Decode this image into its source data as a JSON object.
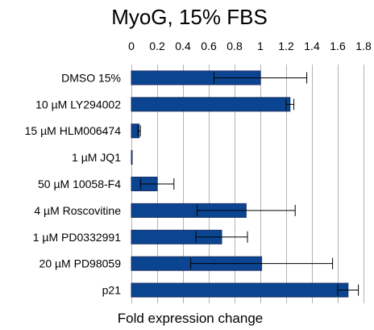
{
  "chart_data": {
    "type": "bar",
    "orientation": "horizontal",
    "title": "MyoG, 15% FBS",
    "xlabel": "Fold expression change",
    "ylabel": "",
    "xlim": [
      0,
      1.8
    ],
    "xticks": [
      0,
      0.2,
      0.4,
      0.6,
      0.8,
      1,
      1.2,
      1.4,
      1.6,
      1.8
    ],
    "xtick_position": "top",
    "grid": true,
    "bar_color": "#0b4591",
    "categories": [
      "DMSO 15%",
      "10 µM LY294002",
      "15 µM HLM006474",
      "1 µM JQ1",
      "50 µM 10058-F4",
      "4 µM Roscovitine",
      "1 µM PD0332991",
      "20 µM PD98059",
      "p21"
    ],
    "values": [
      1.0,
      1.23,
      0.06,
      0.005,
      0.2,
      0.89,
      0.7,
      1.01,
      1.68
    ],
    "errors": [
      0.36,
      0.03,
      0.01,
      0.0,
      0.13,
      0.38,
      0.2,
      0.55,
      0.08
    ]
  }
}
